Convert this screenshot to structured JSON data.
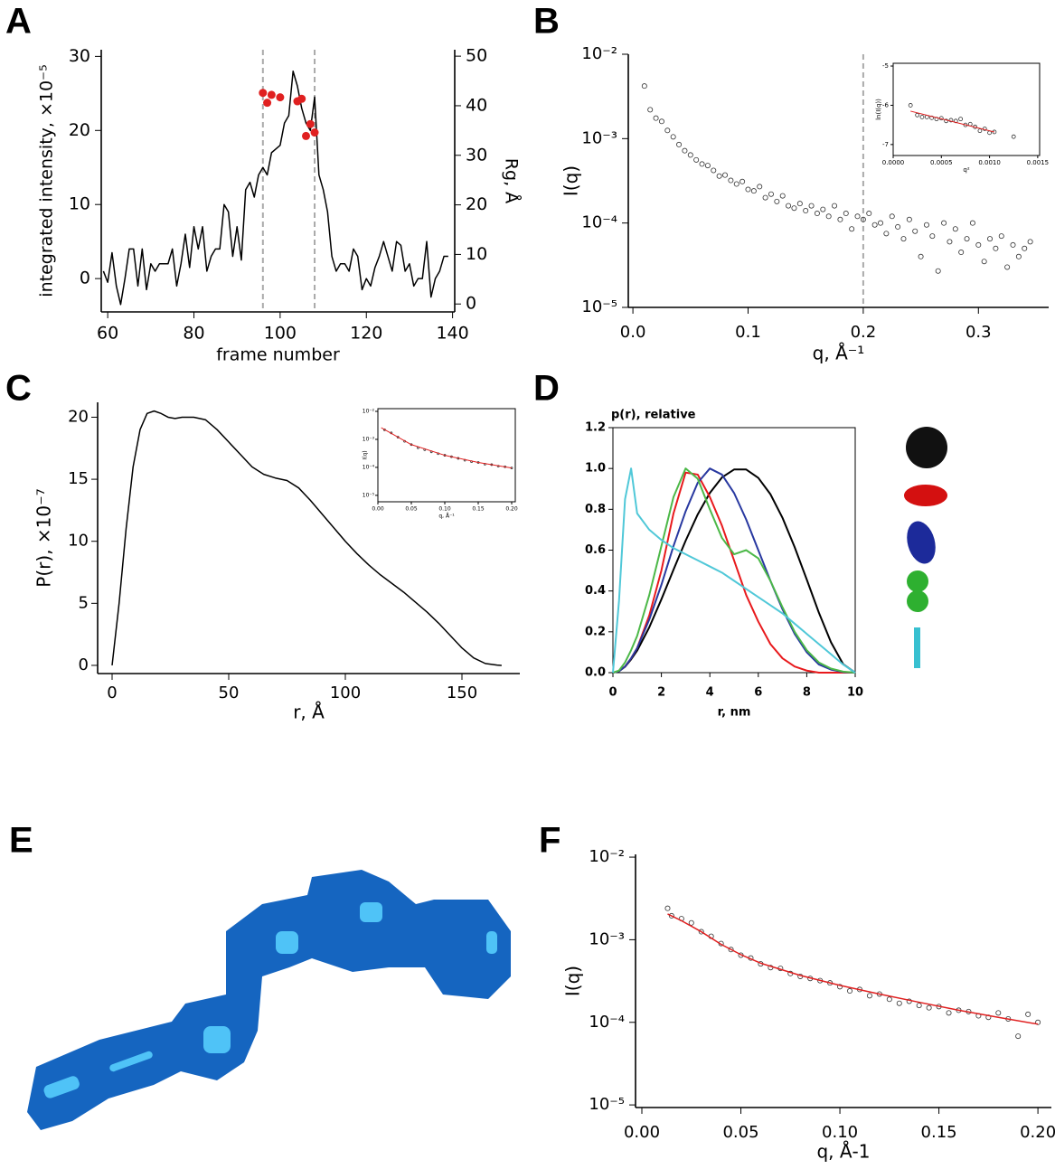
{
  "panel_labels": [
    "A",
    "B",
    "C",
    "D",
    "E",
    "F"
  ],
  "chart_data": [
    {
      "type": "line",
      "xlabel": "frame number",
      "ylabel": "integrated intensity, ×10⁻⁵",
      "y2label": "Rg, Å",
      "xlim": [
        58.5,
        140.5
      ],
      "ylim": [
        -4.5,
        30.9
      ],
      "y2lim": [
        -1.6,
        51.3
      ],
      "xticks": [
        60,
        80,
        100,
        120,
        140
      ],
      "yticks": [
        0,
        10,
        20,
        30
      ],
      "y2ticks": [
        0,
        10,
        20,
        30,
        40,
        50
      ],
      "vlines": [
        96,
        108
      ],
      "series": [
        {
          "type": "line",
          "color": "#000000",
          "x": [
            59,
            60,
            61,
            62,
            63,
            64,
            65,
            66,
            67,
            68,
            69,
            70,
            71,
            72,
            74,
            75,
            76,
            77,
            78,
            79,
            80,
            81,
            82,
            83,
            84,
            85,
            86,
            87,
            88,
            89,
            90,
            91,
            92,
            93,
            94,
            95,
            96,
            97,
            98,
            99,
            100,
            101,
            102,
            103,
            104,
            105,
            106,
            107,
            108,
            109,
            110,
            111,
            112,
            113,
            114,
            115,
            116,
            117,
            118,
            119,
            120,
            121,
            122,
            123,
            124,
            125,
            126,
            127,
            128,
            129,
            130,
            131,
            132,
            133,
            134,
            135,
            136,
            137,
            138,
            139
          ],
          "values": [
            1,
            -0.5,
            3.5,
            -1,
            -3.5,
            0,
            4,
            4,
            -1,
            4,
            -1.5,
            2,
            1,
            2,
            2,
            4,
            -1,
            2,
            6,
            1.5,
            7,
            4,
            7,
            1,
            3,
            4,
            4,
            10,
            9,
            3,
            7,
            2.5,
            12,
            13,
            11,
            14,
            15,
            14,
            17,
            17.5,
            18,
            21,
            22,
            28,
            26,
            23,
            21,
            20,
            24.5,
            14,
            12,
            9,
            3,
            1,
            2,
            2,
            1,
            4,
            3,
            -1.5,
            0,
            -1,
            1.5,
            3,
            5,
            3,
            1,
            5,
            4.5,
            1,
            2,
            -1,
            0,
            0,
            5,
            -2.5,
            0,
            1,
            3,
            3
          ]
        },
        {
          "type": "scatter",
          "color": "#e02020",
          "filled": true,
          "axis": "y2",
          "x": [
            96,
            97,
            98,
            100,
            104,
            105,
            106,
            107,
            108
          ],
          "values": [
            42.6,
            40.6,
            42.2,
            41.7,
            40.9,
            41.4,
            33.9,
            36.3,
            34.6
          ]
        }
      ]
    },
    {
      "type": "scatter",
      "xlabel": "q, Å⁻¹",
      "ylabel": "I(q)",
      "ylog": true,
      "xlim": [
        -0.004,
        0.361
      ],
      "ylim": [
        1e-05,
        0.01
      ],
      "xticks": [
        {
          "value": 0,
          "label": "0.0"
        },
        0.1,
        0.2,
        0.3
      ],
      "yticks": [
        {
          "value": 1e-05,
          "label": "10⁻⁵"
        },
        {
          "value": 0.0001,
          "label": "10⁻⁴"
        },
        {
          "value": 0.001,
          "label": "10⁻³"
        },
        {
          "value": 0.01,
          "label": "10⁻²"
        }
      ],
      "vlines": [
        0.2
      ],
      "series": [
        {
          "type": "scatter",
          "color": "#333333",
          "x": [
            0.01,
            0.015,
            0.02,
            0.025,
            0.03,
            0.035,
            0.04,
            0.045,
            0.05,
            0.055,
            0.06,
            0.065,
            0.07,
            0.075,
            0.08,
            0.085,
            0.09,
            0.095,
            0.1,
            0.105,
            0.11,
            0.115,
            0.12,
            0.125,
            0.13,
            0.135,
            0.14,
            0.145,
            0.15,
            0.155,
            0.16,
            0.165,
            0.17,
            0.175,
            0.18,
            0.185,
            0.19,
            0.195,
            0.2,
            0.205,
            0.21,
            0.215,
            0.22,
            0.225,
            0.23,
            0.235,
            0.24,
            0.245,
            0.25,
            0.255,
            0.26,
            0.265,
            0.27,
            0.275,
            0.28,
            0.285,
            0.29,
            0.295,
            0.3,
            0.305,
            0.31,
            0.315,
            0.32,
            0.325,
            0.33,
            0.335,
            0.34,
            0.345
          ],
          "values": [
            0.0042,
            0.0022,
            0.00175,
            0.0016,
            0.00125,
            0.00105,
            0.00085,
            0.00072,
            0.00064,
            0.00056,
            0.0005,
            0.00048,
            0.00042,
            0.00036,
            0.00037,
            0.00032,
            0.00029,
            0.00031,
            0.00025,
            0.00024,
            0.00027,
            0.0002,
            0.00022,
            0.00018,
            0.00021,
            0.00016,
            0.00015,
            0.00017,
            0.00014,
            0.00016,
            0.00013,
            0.000145,
            0.00012,
            0.00016,
            0.00011,
            0.00013,
            8.5e-05,
            0.00012,
            0.00011,
            0.00013,
            9.5e-05,
            0.0001,
            7.5e-05,
            0.00012,
            9e-05,
            6.5e-05,
            0.00011,
            8e-05,
            4e-05,
            9.5e-05,
            7e-05,
            2.7e-05,
            0.0001,
            6e-05,
            8.5e-05,
            4.5e-05,
            6.5e-05,
            0.0001,
            5.5e-05,
            3.5e-05,
            6.5e-05,
            5e-05,
            7e-05,
            3e-05,
            5.5e-05,
            4e-05,
            5e-05,
            6e-05
          ]
        }
      ]
    },
    {
      "type": "scatter",
      "xlabel": "q²",
      "ylabel": "ln(I(q))",
      "xlim": [
        0,
        0.00152
      ],
      "ylim": [
        -7.28,
        -4.93
      ],
      "xticks": [
        {
          "value": 0,
          "label": "0.0000"
        },
        {
          "value": 0.0005,
          "label": "0.0005"
        },
        {
          "value": 0.001,
          "label": "0.0010"
        },
        {
          "value": 0.0015,
          "label": "0.0015"
        }
      ],
      "yticks": [
        -7,
        -6,
        -5
      ],
      "series": [
        {
          "type": "scatter",
          "color": "#333333",
          "x": [
            0.00018,
            0.00025,
            0.0003,
            0.00035,
            0.0004,
            0.00045,
            0.0005,
            0.00055,
            0.0006,
            0.00065,
            0.0007,
            0.00075,
            0.0008,
            0.00085,
            0.0009,
            0.00095,
            0.001,
            0.00105,
            0.00125
          ],
          "values": [
            -6.0,
            -6.25,
            -6.3,
            -6.3,
            -6.32,
            -6.35,
            -6.33,
            -6.4,
            -6.38,
            -6.4,
            -6.35,
            -6.5,
            -6.48,
            -6.55,
            -6.65,
            -6.6,
            -6.7,
            -6.68,
            -6.8
          ]
        },
        {
          "type": "line",
          "color": "#e02020",
          "x": [
            0.00018,
            0.00105
          ],
          "values": [
            -6.15,
            -6.68
          ]
        }
      ]
    },
    {
      "type": "line",
      "xlabel": "r, Å",
      "ylabel": "P(r), ×10⁻⁷",
      "xlim": [
        -6.2,
        174.8
      ],
      "ylim": [
        -0.66,
        21.2
      ],
      "xticks": [
        0,
        50,
        100,
        150
      ],
      "yticks": [
        0,
        5,
        10,
        15,
        20
      ],
      "series": [
        {
          "type": "line",
          "color": "#000000",
          "x": [
            0,
            3,
            6,
            9,
            12,
            15,
            18,
            21,
            24,
            27,
            30,
            35,
            40,
            45,
            50,
            55,
            60,
            65,
            70,
            75,
            80,
            85,
            90,
            95,
            100,
            105,
            110,
            115,
            120,
            125,
            130,
            135,
            140,
            145,
            150,
            155,
            160,
            165,
            167
          ],
          "values": [
            0,
            5,
            11,
            16,
            19,
            20.3,
            20.5,
            20.3,
            20,
            19.9,
            20,
            20,
            19.8,
            19,
            18,
            17,
            16,
            15.4,
            15.1,
            14.9,
            14.3,
            13.3,
            12.2,
            11.1,
            10,
            9,
            8.1,
            7.3,
            6.6,
            5.9,
            5.1,
            4.3,
            3.4,
            2.4,
            1.4,
            0.6,
            0.15,
            0.02,
            0
          ]
        }
      ]
    },
    {
      "type": "scatter",
      "xlabel": "q, Å⁻¹",
      "ylabel": "I(q)",
      "ylog": true,
      "xlim": [
        0,
        0.2054
      ],
      "ylim": [
        5.9e-06,
        0.0125
      ],
      "xticks": [
        {
          "value": 0,
          "label": "0.00"
        },
        {
          "value": 0.05,
          "label": "0.05"
        },
        {
          "value": 0.1,
          "label": "0.10"
        },
        {
          "value": 0.15,
          "label": "0.15"
        },
        {
          "value": 0.2,
          "label": "0.20"
        }
      ],
      "yticks": [
        {
          "value": 1e-05,
          "label": "10⁻⁵"
        },
        {
          "value": 0.0001,
          "label": "10⁻⁴"
        },
        {
          "value": 0.001,
          "label": "10⁻³"
        },
        {
          "value": 0.01,
          "label": "10⁻²"
        }
      ],
      "series": [
        {
          "type": "scatter",
          "color": "#333333",
          "x": [
            0.01,
            0.02,
            0.03,
            0.04,
            0.05,
            0.06,
            0.07,
            0.08,
            0.09,
            0.1,
            0.11,
            0.12,
            0.13,
            0.14,
            0.15,
            0.16,
            0.17,
            0.18,
            0.19,
            0.2
          ],
          "values": [
            0.0022,
            0.0017,
            0.0012,
            0.00085,
            0.00065,
            0.0005,
            0.00043,
            0.00036,
            0.00031,
            0.00027,
            0.00024,
            0.00021,
            0.00018,
            0.00016,
            0.00015,
            0.00013,
            0.000125,
            0.00011,
            0.000105,
            9.5e-05
          ]
        },
        {
          "type": "line",
          "color": "#e02020",
          "x": [
            0.005,
            0.05,
            0.1,
            0.15,
            0.2
          ],
          "values": [
            0.0026,
            0.00065,
            0.00027,
            0.00015,
            9.5e-05
          ]
        }
      ]
    },
    {
      "type": "line",
      "title": "p(r), relative",
      "xlabel": "r, nm",
      "xlim": [
        0,
        10
      ],
      "ylim": [
        0,
        1.2
      ],
      "xticks": [
        0,
        2,
        4,
        6,
        8,
        10
      ],
      "yticks": [
        {
          "value": 0,
          "label": "0.0"
        },
        0.2,
        0.4,
        0.6,
        0.8,
        {
          "value": 1,
          "label": "1.0"
        },
        1.2
      ],
      "x": [
        0,
        0.25,
        0.5,
        0.75,
        1,
        1.5,
        2,
        2.5,
        3,
        3.5,
        4,
        4.5,
        5,
        5.5,
        6,
        6.5,
        7,
        7.5,
        8,
        8.5,
        9,
        9.5,
        10
      ],
      "series": [
        {
          "type": "line",
          "color": "#000000",
          "values": [
            0,
            0.007,
            0.029,
            0.065,
            0.108,
            0.222,
            0.359,
            0.504,
            0.646,
            0.775,
            0.88,
            0.956,
            0.995,
            0.995,
            0.954,
            0.874,
            0.758,
            0.615,
            0.456,
            0.294,
            0.149,
            0.042,
            0
          ]
        },
        {
          "type": "line",
          "color": "#e8191c",
          "values": [
            0,
            0.008,
            0.03,
            0.07,
            0.12,
            0.28,
            0.5,
            0.78,
            0.98,
            0.97,
            0.86,
            0.72,
            0.55,
            0.38,
            0.25,
            0.14,
            0.07,
            0.03,
            0.01,
            0,
            0,
            0,
            0
          ]
        },
        {
          "type": "line",
          "color": "#2838a0",
          "values": [
            0,
            0.007,
            0.03,
            0.07,
            0.12,
            0.26,
            0.43,
            0.62,
            0.79,
            0.93,
            1,
            0.97,
            0.88,
            0.75,
            0.6,
            0.45,
            0.31,
            0.19,
            0.1,
            0.04,
            0.015,
            0.003,
            0
          ]
        },
        {
          "type": "line",
          "color": "#4cb848",
          "values": [
            0,
            0.01,
            0.05,
            0.11,
            0.18,
            0.38,
            0.62,
            0.86,
            1,
            0.95,
            0.8,
            0.66,
            0.58,
            0.6,
            0.56,
            0.45,
            0.32,
            0.2,
            0.11,
            0.05,
            0.02,
            0.005,
            0
          ]
        },
        {
          "type": "line",
          "color": "#50c8d8",
          "values": [
            0,
            0.35,
            0.85,
            1,
            0.78,
            0.7,
            0.65,
            0.61,
            0.58,
            0.55,
            0.52,
            0.49,
            0.45,
            0.41,
            0.37,
            0.33,
            0.29,
            0.24,
            0.19,
            0.14,
            0.09,
            0.04,
            0
          ]
        }
      ]
    },
    {
      "type": "scatter",
      "xlabel": "q, Å-1",
      "ylabel": "I(q)",
      "ylog": true,
      "xlim": [
        -0.0032,
        0.2068
      ],
      "ylim": [
        9.3e-06,
        0.0108
      ],
      "xticks": [
        {
          "value": 0,
          "label": "0.00"
        },
        {
          "value": 0.05,
          "label": "0.05"
        },
        {
          "value": 0.1,
          "label": "0.10"
        },
        {
          "value": 0.15,
          "label": "0.15"
        },
        {
          "value": 0.2,
          "label": "0.20"
        }
      ],
      "yticks": [
        {
          "value": 1e-05,
          "label": "10⁻⁵"
        },
        {
          "value": 0.0001,
          "label": "10⁻⁴"
        },
        {
          "value": 0.001,
          "label": "10⁻³"
        },
        {
          "value": 0.01,
          "label": "10⁻²"
        }
      ],
      "series": [
        {
          "type": "scatter",
          "color": "#333333",
          "x": [
            0.013,
            0.015,
            0.02,
            0.025,
            0.03,
            0.035,
            0.04,
            0.045,
            0.05,
            0.055,
            0.06,
            0.065,
            0.07,
            0.075,
            0.08,
            0.085,
            0.09,
            0.095,
            0.1,
            0.105,
            0.11,
            0.115,
            0.12,
            0.125,
            0.13,
            0.135,
            0.14,
            0.145,
            0.15,
            0.155,
            0.16,
            0.165,
            0.17,
            0.175,
            0.18,
            0.185,
            0.19,
            0.195,
            0.2
          ],
          "values": [
            0.0024,
            0.00195,
            0.0018,
            0.0016,
            0.00125,
            0.0011,
            0.0009,
            0.00076,
            0.00065,
            0.0006,
            0.00051,
            0.00046,
            0.00045,
            0.00039,
            0.00036,
            0.00034,
            0.00032,
            0.0003,
            0.00027,
            0.00024,
            0.00025,
            0.00021,
            0.00022,
            0.00019,
            0.00017,
            0.00018,
            0.00016,
            0.00015,
            0.000155,
            0.00013,
            0.00014,
            0.000135,
            0.00012,
            0.000115,
            0.00013,
            0.00011,
            6.8e-05,
            0.000125,
            0.0001
          ]
        },
        {
          "type": "line",
          "color": "#e02020",
          "x": [
            0.013,
            0.02,
            0.03,
            0.04,
            0.05,
            0.06,
            0.08,
            0.1,
            0.12,
            0.14,
            0.16,
            0.18,
            0.2
          ],
          "values": [
            0.00205,
            0.0017,
            0.00125,
            0.00088,
            0.00066,
            0.00052,
            0.00037,
            0.00028,
            0.00022,
            0.000175,
            0.00014,
            0.000115,
            9.5e-05
          ]
        }
      ]
    }
  ]
}
